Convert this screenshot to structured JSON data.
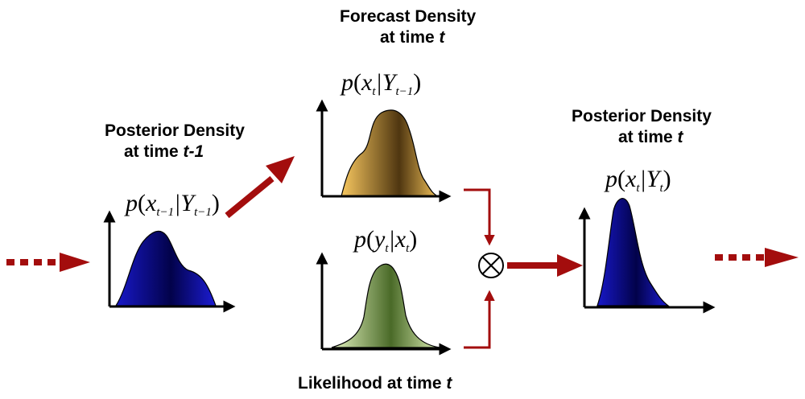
{
  "titles": {
    "posterior_prev": {
      "line1": "Posterior Density",
      "line2_prefix": "at time ",
      "line2_var": "t-1"
    },
    "forecast": {
      "line1": "Forecast Density",
      "line2_prefix": "at time ",
      "line2_var": "t"
    },
    "posterior_curr": {
      "line1": "Posterior Density",
      "line2_prefix": "at time ",
      "line2_var": "t"
    },
    "likelihood": {
      "prefix": "Likelihood at time ",
      "var": "t"
    }
  },
  "formulas": {
    "posterior_prev": {
      "p": "p",
      "var": "x",
      "var_sub": "t−1",
      "bar": "|",
      "cond": "Y",
      "cond_sub": "t−1"
    },
    "forecast": {
      "p": "p",
      "var": "x",
      "var_sub": "t",
      "bar": "|",
      "cond": "Y",
      "cond_sub": "t−1"
    },
    "likelihood": {
      "p": "p",
      "var": "y",
      "var_sub": "t",
      "bar": "|",
      "cond": "x",
      "cond_sub": "t"
    },
    "posterior_curr": {
      "p": "p",
      "var": "x",
      "var_sub": "t",
      "bar": "|",
      "cond": "Y",
      "cond_sub": "t"
    }
  },
  "operator": {
    "symbol": "⊗",
    "name": "product"
  },
  "colors": {
    "arrow": "#a30d0d",
    "blue_density": "#1a1acc",
    "forecast_density": "#b08030",
    "likelihood_density": "#7a9a50"
  }
}
